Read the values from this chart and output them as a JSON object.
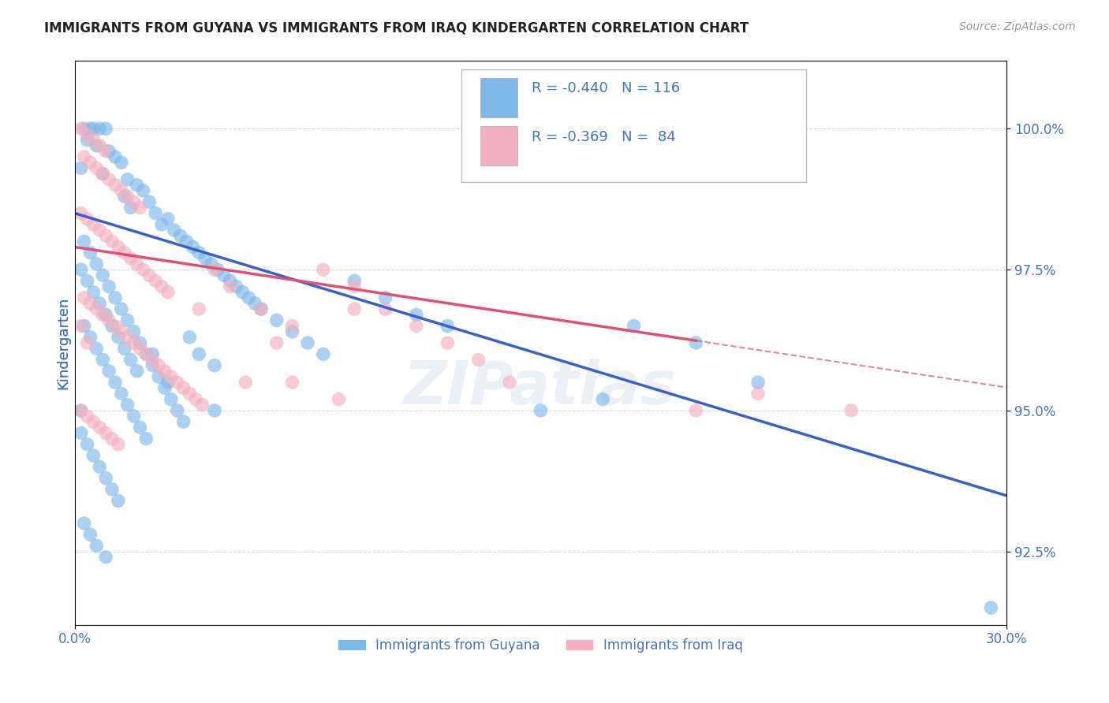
{
  "title": "IMMIGRANTS FROM GUYANA VS IMMIGRANTS FROM IRAQ KINDERGARTEN CORRELATION CHART",
  "source_text": "Source: ZipAtlas.com",
  "ylabel": "Kindergarten",
  "ytick_vals": [
    92.5,
    95.0,
    97.5,
    100.0
  ],
  "xlim": [
    0.0,
    30.0
  ],
  "ylim": [
    91.2,
    101.2
  ],
  "color_guyana": "#7EB8E8",
  "color_iraq": "#F2B0C0",
  "trendline_color_guyana": "#3A5FCD",
  "trendline_color_iraq": "#E05070",
  "watermark": "ZIPatlas",
  "background_color": "#FFFFFF",
  "grid_color": "#CCCCCC",
  "title_color": "#222222",
  "axis_label_color": "#4472C4",
  "legend_text_color": "#4472C4",
  "guyana_intercept": 98.5,
  "guyana_slope": -0.167,
  "iraq_intercept": 97.9,
  "iraq_slope": -0.083,
  "iraq_line_xmax": 20.0,
  "guyana_points": [
    [
      0.3,
      100.0
    ],
    [
      0.5,
      100.0
    ],
    [
      0.6,
      100.0
    ],
    [
      0.8,
      100.0
    ],
    [
      1.0,
      100.0
    ],
    [
      0.4,
      99.8
    ],
    [
      0.7,
      99.7
    ],
    [
      1.1,
      99.6
    ],
    [
      1.3,
      99.5
    ],
    [
      1.5,
      99.4
    ],
    [
      0.2,
      99.3
    ],
    [
      0.9,
      99.2
    ],
    [
      1.7,
      99.1
    ],
    [
      2.0,
      99.0
    ],
    [
      2.2,
      98.9
    ],
    [
      1.6,
      98.8
    ],
    [
      2.4,
      98.7
    ],
    [
      1.8,
      98.6
    ],
    [
      2.6,
      98.5
    ],
    [
      3.0,
      98.4
    ],
    [
      2.8,
      98.3
    ],
    [
      3.2,
      98.2
    ],
    [
      3.4,
      98.1
    ],
    [
      3.6,
      98.0
    ],
    [
      3.8,
      97.9
    ],
    [
      4.0,
      97.8
    ],
    [
      4.2,
      97.7
    ],
    [
      4.4,
      97.6
    ],
    [
      4.6,
      97.5
    ],
    [
      4.8,
      97.4
    ],
    [
      5.0,
      97.3
    ],
    [
      5.2,
      97.2
    ],
    [
      5.4,
      97.1
    ],
    [
      5.6,
      97.0
    ],
    [
      5.8,
      96.9
    ],
    [
      6.0,
      96.8
    ],
    [
      6.5,
      96.6
    ],
    [
      7.0,
      96.4
    ],
    [
      7.5,
      96.2
    ],
    [
      8.0,
      96.0
    ],
    [
      9.0,
      97.3
    ],
    [
      10.0,
      97.0
    ],
    [
      11.0,
      96.7
    ],
    [
      12.0,
      96.5
    ],
    [
      0.3,
      98.0
    ],
    [
      0.5,
      97.8
    ],
    [
      0.7,
      97.6
    ],
    [
      0.9,
      97.4
    ],
    [
      1.1,
      97.2
    ],
    [
      1.3,
      97.0
    ],
    [
      1.5,
      96.8
    ],
    [
      1.7,
      96.6
    ],
    [
      1.9,
      96.4
    ],
    [
      2.1,
      96.2
    ],
    [
      2.3,
      96.0
    ],
    [
      2.5,
      95.8
    ],
    [
      2.7,
      95.6
    ],
    [
      2.9,
      95.4
    ],
    [
      3.1,
      95.2
    ],
    [
      3.3,
      95.0
    ],
    [
      3.5,
      94.8
    ],
    [
      3.7,
      96.3
    ],
    [
      4.0,
      96.0
    ],
    [
      4.5,
      95.8
    ],
    [
      0.2,
      97.5
    ],
    [
      0.4,
      97.3
    ],
    [
      0.6,
      97.1
    ],
    [
      0.8,
      96.9
    ],
    [
      1.0,
      96.7
    ],
    [
      1.2,
      96.5
    ],
    [
      1.4,
      96.3
    ],
    [
      1.6,
      96.1
    ],
    [
      1.8,
      95.9
    ],
    [
      2.0,
      95.7
    ],
    [
      0.3,
      96.5
    ],
    [
      0.5,
      96.3
    ],
    [
      0.7,
      96.1
    ],
    [
      0.9,
      95.9
    ],
    [
      1.1,
      95.7
    ],
    [
      1.3,
      95.5
    ],
    [
      1.5,
      95.3
    ],
    [
      1.7,
      95.1
    ],
    [
      1.9,
      94.9
    ],
    [
      2.1,
      94.7
    ],
    [
      2.3,
      94.5
    ],
    [
      2.5,
      96.0
    ],
    [
      3.0,
      95.5
    ],
    [
      0.2,
      94.6
    ],
    [
      0.4,
      94.4
    ],
    [
      0.6,
      94.2
    ],
    [
      0.8,
      94.0
    ],
    [
      1.0,
      93.8
    ],
    [
      1.2,
      93.6
    ],
    [
      1.4,
      93.4
    ],
    [
      4.5,
      95.0
    ],
    [
      0.3,
      93.0
    ],
    [
      0.5,
      92.8
    ],
    [
      0.7,
      92.6
    ],
    [
      1.0,
      92.4
    ],
    [
      18.0,
      96.5
    ],
    [
      20.0,
      96.2
    ],
    [
      22.0,
      95.5
    ],
    [
      0.2,
      95.0
    ],
    [
      15.0,
      95.0
    ],
    [
      17.0,
      95.2
    ],
    [
      29.5,
      91.5
    ]
  ],
  "iraq_points": [
    [
      0.2,
      100.0
    ],
    [
      0.4,
      99.9
    ],
    [
      0.6,
      99.8
    ],
    [
      0.8,
      99.7
    ],
    [
      1.0,
      99.6
    ],
    [
      0.3,
      99.5
    ],
    [
      0.5,
      99.4
    ],
    [
      0.7,
      99.3
    ],
    [
      0.9,
      99.2
    ],
    [
      1.1,
      99.1
    ],
    [
      1.3,
      99.0
    ],
    [
      1.5,
      98.9
    ],
    [
      1.7,
      98.8
    ],
    [
      1.9,
      98.7
    ],
    [
      2.1,
      98.6
    ],
    [
      0.2,
      98.5
    ],
    [
      0.4,
      98.4
    ],
    [
      0.6,
      98.3
    ],
    [
      0.8,
      98.2
    ],
    [
      1.0,
      98.1
    ],
    [
      1.2,
      98.0
    ],
    [
      1.4,
      97.9
    ],
    [
      1.6,
      97.8
    ],
    [
      1.8,
      97.7
    ],
    [
      2.0,
      97.6
    ],
    [
      2.2,
      97.5
    ],
    [
      2.4,
      97.4
    ],
    [
      2.6,
      97.3
    ],
    [
      2.8,
      97.2
    ],
    [
      3.0,
      97.1
    ],
    [
      0.3,
      97.0
    ],
    [
      0.5,
      96.9
    ],
    [
      0.7,
      96.8
    ],
    [
      0.9,
      96.7
    ],
    [
      1.1,
      96.6
    ],
    [
      1.3,
      96.5
    ],
    [
      1.5,
      96.4
    ],
    [
      1.7,
      96.3
    ],
    [
      1.9,
      96.2
    ],
    [
      2.1,
      96.1
    ],
    [
      2.3,
      96.0
    ],
    [
      2.5,
      95.9
    ],
    [
      2.7,
      95.8
    ],
    [
      2.9,
      95.7
    ],
    [
      3.1,
      95.6
    ],
    [
      3.3,
      95.5
    ],
    [
      3.5,
      95.4
    ],
    [
      3.7,
      95.3
    ],
    [
      3.9,
      95.2
    ],
    [
      4.1,
      95.1
    ],
    [
      0.2,
      95.0
    ],
    [
      0.4,
      94.9
    ],
    [
      0.6,
      94.8
    ],
    [
      0.8,
      94.7
    ],
    [
      1.0,
      94.6
    ],
    [
      1.2,
      94.5
    ],
    [
      1.4,
      94.4
    ],
    [
      4.5,
      97.5
    ],
    [
      5.0,
      97.2
    ],
    [
      6.0,
      96.8
    ],
    [
      7.0,
      96.5
    ],
    [
      8.0,
      97.5
    ],
    [
      9.0,
      97.2
    ],
    [
      10.0,
      96.8
    ],
    [
      5.5,
      95.5
    ],
    [
      7.0,
      95.5
    ],
    [
      8.5,
      95.2
    ],
    [
      11.0,
      96.5
    ],
    [
      12.0,
      96.2
    ],
    [
      13.0,
      95.9
    ],
    [
      4.0,
      96.8
    ],
    [
      6.5,
      96.2
    ],
    [
      9.0,
      96.8
    ],
    [
      0.2,
      96.5
    ],
    [
      0.4,
      96.2
    ],
    [
      14.0,
      95.5
    ],
    [
      20.0,
      95.0
    ],
    [
      22.0,
      95.3
    ],
    [
      25.0,
      95.0
    ]
  ]
}
